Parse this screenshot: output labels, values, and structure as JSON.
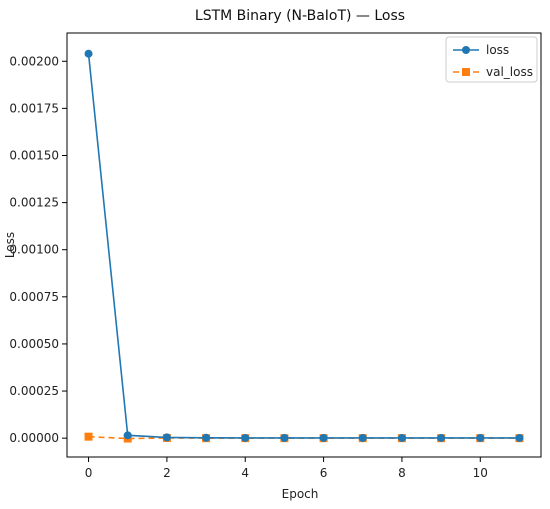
{
  "chart_data": {
    "type": "line",
    "title": "LSTM Binary (N-BaIoT) — Loss",
    "xlabel": "Epoch",
    "ylabel": "Loss",
    "x": [
      0,
      1,
      2,
      3,
      4,
      5,
      6,
      7,
      8,
      9,
      10,
      11
    ],
    "xlim": [
      -0.55,
      11.55
    ],
    "ylim": [
      -0.0001,
      0.00215
    ],
    "xticks": [
      0,
      2,
      4,
      6,
      8,
      10
    ],
    "yticks": [
      "0.00000",
      "0.00025",
      "0.00050",
      "0.00075",
      "0.00100",
      "0.00125",
      "0.00150",
      "0.00175",
      "0.00200"
    ],
    "ytick_values": [
      0,
      0.00025,
      0.0005,
      0.00075,
      0.001,
      0.00125,
      0.0015,
      0.00175,
      0.002
    ],
    "grid": false,
    "legend_position": "top-right",
    "series": [
      {
        "name": "loss",
        "color": "#1f77b4",
        "linestyle": "solid",
        "marker": "circle",
        "values": [
          0.00204,
          1.5e-05,
          4e-06,
          2e-06,
          1e-06,
          1e-06,
          1e-06,
          1e-06,
          1e-06,
          1e-06,
          1e-06,
          1e-06
        ]
      },
      {
        "name": "val_loss",
        "color": "#ff7f0e",
        "linestyle": "dashed",
        "marker": "square",
        "values": [
          8e-06,
          -2e-06,
          1e-06,
          0.0,
          0.0,
          0.0,
          0.0,
          0.0,
          0.0,
          0.0,
          0.0,
          0.0
        ]
      }
    ]
  }
}
